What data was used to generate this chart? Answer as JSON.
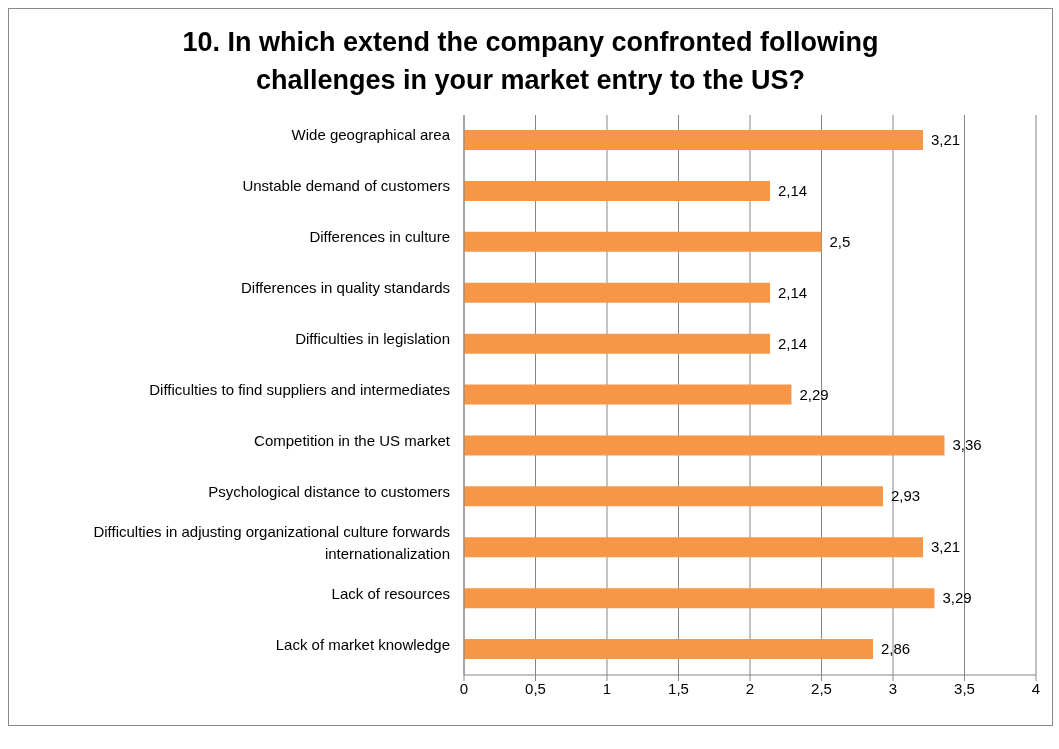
{
  "chart_data": {
    "type": "bar",
    "orientation": "horizontal",
    "title": "10. In which extend the company confronted following challenges in your market entry to the US?",
    "categories": [
      "Wide geographical area",
      "Unstable demand of customers",
      "Differences in culture",
      "Differences in quality standards",
      "Difficulties in legislation",
      "Difficulties to find suppliers and intermediates",
      "Competition in the US market",
      "Psychological distance to customers",
      "Difficulties in adjusting organizational culture forwards internationalization",
      "Lack of resources",
      "Lack of market knowledge"
    ],
    "values": [
      3.21,
      2.14,
      2.5,
      2.14,
      2.14,
      2.29,
      3.36,
      2.93,
      3.21,
      3.29,
      2.86
    ],
    "value_labels": [
      "3,21",
      "2,14",
      "2,5",
      "2,14",
      "2,14",
      "2,29",
      "3,36",
      "2,93",
      "3,21",
      "3,29",
      "2,86"
    ],
    "color": "#f79646",
    "xlim": [
      0,
      4
    ],
    "xticks": [
      0,
      {
        "value": 0.5,
        "label": "0,5"
      },
      1,
      {
        "value": 1.5,
        "label": "1,5"
      },
      2,
      {
        "value": 2.5,
        "label": "2,5"
      },
      3,
      {
        "value": 3.5,
        "label": "3,5"
      },
      4
    ],
    "grid": "x",
    "legend": false
  }
}
